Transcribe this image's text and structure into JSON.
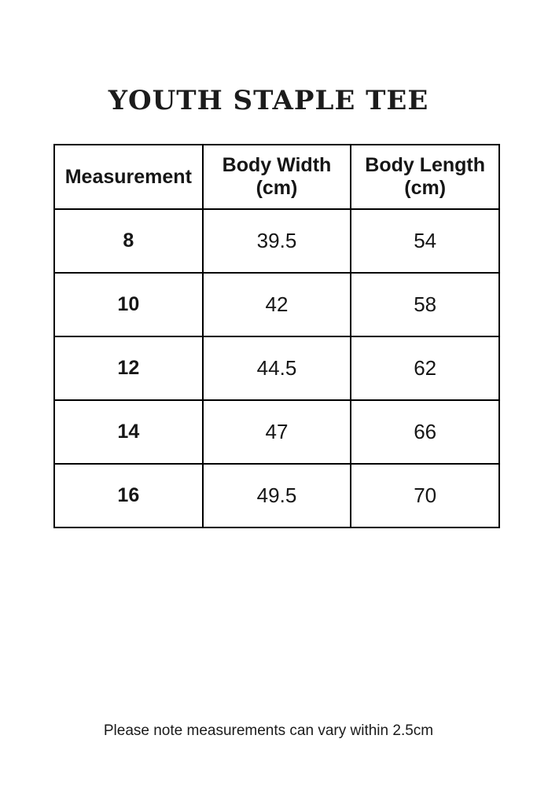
{
  "page": {
    "title": "YOUTH STAPLE TEE",
    "note": "Please note measurements can vary within 2.5cm"
  },
  "table": {
    "columns": [
      "Measurement",
      "Body Width (cm)",
      "Body Length (cm)"
    ],
    "rows": [
      {
        "size": "8",
        "body_width": "39.5",
        "body_length": "54"
      },
      {
        "size": "10",
        "body_width": "42",
        "body_length": "58"
      },
      {
        "size": "12",
        "body_width": "44.5",
        "body_length": "62"
      },
      {
        "size": "14",
        "body_width": "47",
        "body_length": "66"
      },
      {
        "size": "16",
        "body_width": "49.5",
        "body_length": "70"
      }
    ]
  },
  "colors": {
    "background": "#ffffff",
    "border": "#000000",
    "text": "#1a1a1a"
  }
}
